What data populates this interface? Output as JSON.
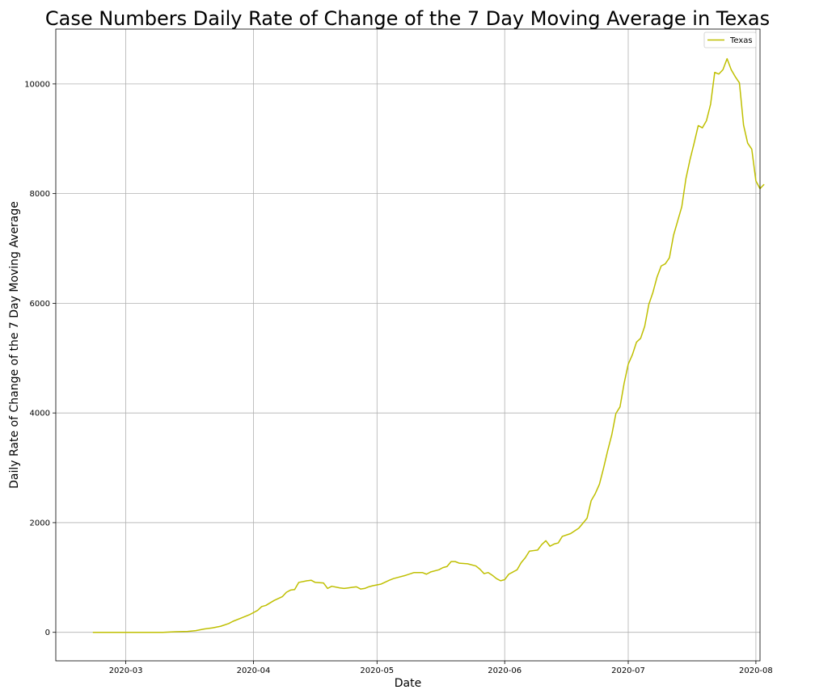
{
  "chart_data": {
    "type": "line",
    "title": "Case Numbers Daily Rate of Change of the 7 Day Moving Average in Texas",
    "xlabel": "Date",
    "ylabel": "Daily Rate of Change of the 7 Day Moving Average",
    "xlim": [
      "2020-02-13",
      "2020-08-02"
    ],
    "ylim": [
      -520,
      11000
    ],
    "grid": true,
    "legend_position": "top-right",
    "x_ticks": [
      {
        "date": "2020-03-01",
        "label": "2020-03"
      },
      {
        "date": "2020-04-01",
        "label": "2020-04"
      },
      {
        "date": "2020-05-01",
        "label": "2020-05"
      },
      {
        "date": "2020-06-01",
        "label": "2020-06"
      },
      {
        "date": "2020-07-01",
        "label": "2020-07"
      },
      {
        "date": "2020-08-01",
        "label": "2020-08"
      }
    ],
    "y_ticks": [
      {
        "value": 0,
        "label": "0"
      },
      {
        "value": 2000,
        "label": "2000"
      },
      {
        "value": 4000,
        "label": "4000"
      },
      {
        "value": 6000,
        "label": "6000"
      },
      {
        "value": 8000,
        "label": "8000"
      },
      {
        "value": 10000,
        "label": "10000"
      }
    ],
    "series": [
      {
        "name": "Texas",
        "color": "#bfbf00",
        "points": [
          [
            "2020-02-22",
            0
          ],
          [
            "2020-02-25",
            0
          ],
          [
            "2020-03-01",
            0
          ],
          [
            "2020-03-06",
            0
          ],
          [
            "2020-03-10",
            0
          ],
          [
            "2020-03-13",
            10
          ],
          [
            "2020-03-16",
            15
          ],
          [
            "2020-03-18",
            30
          ],
          [
            "2020-03-20",
            60
          ],
          [
            "2020-03-22",
            80
          ],
          [
            "2020-03-24",
            110
          ],
          [
            "2020-03-26",
            160
          ],
          [
            "2020-03-27",
            200
          ],
          [
            "2020-03-29",
            260
          ],
          [
            "2020-03-31",
            320
          ],
          [
            "2020-04-02",
            400
          ],
          [
            "2020-04-03",
            470
          ],
          [
            "2020-04-04",
            490
          ],
          [
            "2020-04-06",
            580
          ],
          [
            "2020-04-08",
            650
          ],
          [
            "2020-04-09",
            730
          ],
          [
            "2020-04-10",
            770
          ],
          [
            "2020-04-11",
            780
          ],
          [
            "2020-04-12",
            910
          ],
          [
            "2020-04-14",
            940
          ],
          [
            "2020-04-15",
            950
          ],
          [
            "2020-04-16",
            910
          ],
          [
            "2020-04-18",
            900
          ],
          [
            "2020-04-19",
            800
          ],
          [
            "2020-04-20",
            840
          ],
          [
            "2020-04-22",
            810
          ],
          [
            "2020-04-23",
            800
          ],
          [
            "2020-04-24",
            810
          ],
          [
            "2020-04-25",
            820
          ],
          [
            "2020-04-26",
            830
          ],
          [
            "2020-04-27",
            790
          ],
          [
            "2020-04-28",
            800
          ],
          [
            "2020-04-29",
            830
          ],
          [
            "2020-04-30",
            850
          ],
          [
            "2020-05-02",
            880
          ],
          [
            "2020-05-04",
            950
          ],
          [
            "2020-05-05",
            980
          ],
          [
            "2020-05-06",
            1000
          ],
          [
            "2020-05-08",
            1040
          ],
          [
            "2020-05-10",
            1090
          ],
          [
            "2020-05-12",
            1090
          ],
          [
            "2020-05-13",
            1060
          ],
          [
            "2020-05-14",
            1100
          ],
          [
            "2020-05-16",
            1140
          ],
          [
            "2020-05-17",
            1180
          ],
          [
            "2020-05-18",
            1200
          ],
          [
            "2020-05-19",
            1290
          ],
          [
            "2020-05-20",
            1290
          ],
          [
            "2020-05-21",
            1260
          ],
          [
            "2020-05-23",
            1250
          ],
          [
            "2020-05-25",
            1210
          ],
          [
            "2020-05-26",
            1150
          ],
          [
            "2020-05-27",
            1070
          ],
          [
            "2020-05-28",
            1090
          ],
          [
            "2020-05-29",
            1040
          ],
          [
            "2020-05-30",
            980
          ],
          [
            "2020-05-31",
            940
          ],
          [
            "2020-06-01",
            960
          ],
          [
            "2020-06-02",
            1060
          ],
          [
            "2020-06-03",
            1100
          ],
          [
            "2020-06-04",
            1140
          ],
          [
            "2020-06-05",
            1270
          ],
          [
            "2020-06-06",
            1360
          ],
          [
            "2020-06-07",
            1480
          ],
          [
            "2020-06-08",
            1490
          ],
          [
            "2020-06-09",
            1500
          ],
          [
            "2020-06-10",
            1600
          ],
          [
            "2020-06-11",
            1670
          ],
          [
            "2020-06-12",
            1570
          ],
          [
            "2020-06-13",
            1610
          ],
          [
            "2020-06-14",
            1630
          ],
          [
            "2020-06-15",
            1750
          ],
          [
            "2020-06-17",
            1800
          ],
          [
            "2020-06-19",
            1900
          ],
          [
            "2020-06-20",
            1990
          ],
          [
            "2020-06-21",
            2080
          ],
          [
            "2020-06-22",
            2400
          ],
          [
            "2020-06-23",
            2530
          ],
          [
            "2020-06-24",
            2700
          ],
          [
            "2020-06-25",
            2990
          ],
          [
            "2020-06-26",
            3310
          ],
          [
            "2020-06-27",
            3600
          ],
          [
            "2020-06-28",
            3990
          ],
          [
            "2020-06-29",
            4110
          ],
          [
            "2020-06-30",
            4540
          ],
          [
            "2020-07-01",
            4890
          ],
          [
            "2020-07-02",
            5060
          ],
          [
            "2020-07-03",
            5290
          ],
          [
            "2020-07-04",
            5360
          ],
          [
            "2020-07-05",
            5580
          ],
          [
            "2020-07-06",
            5980
          ],
          [
            "2020-07-07",
            6200
          ],
          [
            "2020-07-08",
            6480
          ],
          [
            "2020-07-09",
            6680
          ],
          [
            "2020-07-10",
            6720
          ],
          [
            "2020-07-11",
            6830
          ],
          [
            "2020-07-12",
            7240
          ],
          [
            "2020-07-13",
            7500
          ],
          [
            "2020-07-14",
            7760
          ],
          [
            "2020-07-15",
            8270
          ],
          [
            "2020-07-16",
            8620
          ],
          [
            "2020-07-17",
            8920
          ],
          [
            "2020-07-18",
            9240
          ],
          [
            "2020-07-19",
            9200
          ],
          [
            "2020-07-20",
            9330
          ],
          [
            "2020-07-21",
            9630
          ],
          [
            "2020-07-22",
            10210
          ],
          [
            "2020-07-23",
            10180
          ],
          [
            "2020-07-24",
            10260
          ],
          [
            "2020-07-25",
            10460
          ],
          [
            "2020-07-26",
            10260
          ],
          [
            "2020-07-27",
            10130
          ],
          [
            "2020-07-28",
            10020
          ],
          [
            "2020-07-29",
            9250
          ],
          [
            "2020-07-30",
            8920
          ],
          [
            "2020-07-31",
            8810
          ],
          [
            "2020-08-01",
            8230
          ],
          [
            "2020-08-02",
            8090
          ],
          [
            "2020-08-03",
            8170
          ]
        ]
      }
    ]
  }
}
